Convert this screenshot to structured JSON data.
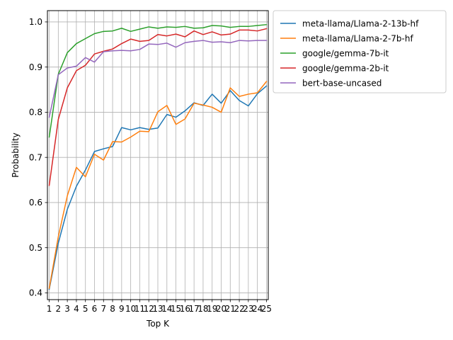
{
  "chart_data": {
    "type": "line",
    "xlabel": "Top K",
    "ylabel": "Probability",
    "x": [
      1,
      2,
      3,
      4,
      5,
      6,
      7,
      8,
      9,
      10,
      11,
      12,
      13,
      14,
      15,
      16,
      17,
      18,
      19,
      20,
      21,
      22,
      23,
      24,
      25
    ],
    "ylim": [
      0.385,
      1.025
    ],
    "yticks": [
      0.4,
      0.5,
      0.6,
      0.7,
      0.8,
      0.9,
      1.0
    ],
    "ytick_labels": [
      "0.4",
      "0.5",
      "0.6",
      "0.7",
      "0.8",
      "0.9",
      "1.0"
    ],
    "grid": true,
    "legend_position": "outside-top-right",
    "series": [
      {
        "name": "meta-llama/Llama-2-13b-hf",
        "color": "#1f77b4",
        "values": [
          0.408,
          0.51,
          0.585,
          0.636,
          0.672,
          0.713,
          0.719,
          0.724,
          0.766,
          0.761,
          0.766,
          0.762,
          0.765,
          0.795,
          0.789,
          0.803,
          0.821,
          0.815,
          0.84,
          0.82,
          0.848,
          0.826,
          0.814,
          0.841,
          0.858
        ]
      },
      {
        "name": "meta-llama/Llama-2-7b-hf",
        "color": "#ff7f0e",
        "values": [
          0.41,
          0.524,
          0.615,
          0.678,
          0.657,
          0.707,
          0.694,
          0.735,
          0.734,
          0.745,
          0.758,
          0.757,
          0.801,
          0.815,
          0.773,
          0.785,
          0.82,
          0.816,
          0.811,
          0.8,
          0.854,
          0.835,
          0.84,
          0.843,
          0.868
        ]
      },
      {
        "name": "google/gemma-7b-it",
        "color": "#2ca02c",
        "values": [
          0.745,
          0.884,
          0.932,
          0.952,
          0.963,
          0.974,
          0.979,
          0.98,
          0.986,
          0.979,
          0.984,
          0.989,
          0.986,
          0.989,
          0.988,
          0.99,
          0.986,
          0.987,
          0.992,
          0.991,
          0.988,
          0.99,
          0.99,
          0.992,
          0.994
        ]
      },
      {
        "name": "google/gemma-2b-it",
        "color": "#d62728",
        "values": [
          0.638,
          0.784,
          0.854,
          0.892,
          0.904,
          0.929,
          0.935,
          0.94,
          0.952,
          0.962,
          0.957,
          0.959,
          0.972,
          0.969,
          0.973,
          0.967,
          0.98,
          0.972,
          0.978,
          0.971,
          0.973,
          0.982,
          0.982,
          0.98,
          0.985
        ]
      },
      {
        "name": "bert-base-uncased",
        "color": "#9467bd",
        "values": [
          0.789,
          0.883,
          0.898,
          0.902,
          0.921,
          0.911,
          0.934,
          0.936,
          0.937,
          0.936,
          0.939,
          0.951,
          0.95,
          0.953,
          0.944,
          0.954,
          0.957,
          0.959,
          0.955,
          0.956,
          0.954,
          0.959,
          0.958,
          0.959,
          0.959
        ]
      }
    ]
  }
}
